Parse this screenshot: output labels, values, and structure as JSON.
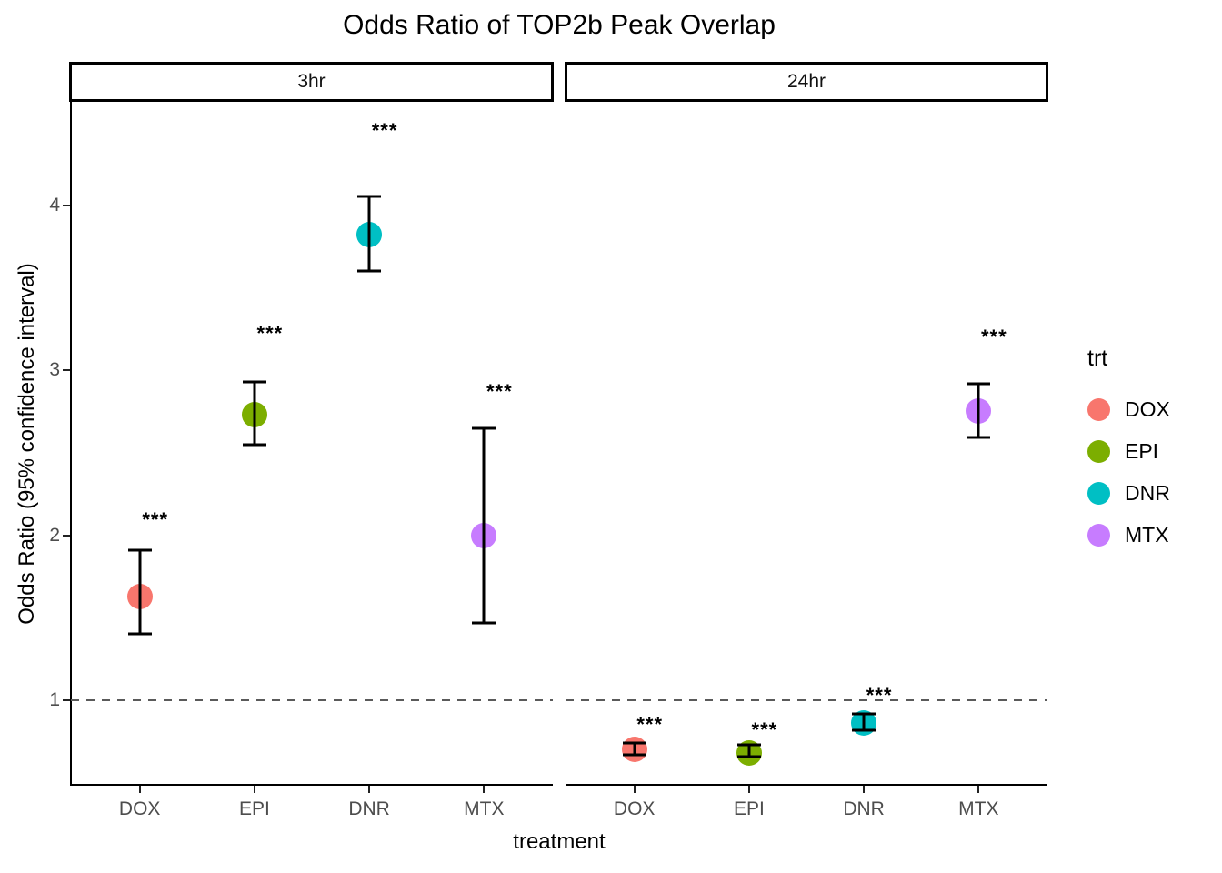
{
  "legend": {
    "title": "trt",
    "items": [
      {
        "label": "DOX",
        "color": "#F8766D"
      },
      {
        "label": "EPI",
        "color": "#7CAE00"
      },
      {
        "label": "DNR",
        "color": "#00BFC4"
      },
      {
        "label": "MTX",
        "color": "#C77CFF"
      }
    ]
  },
  "chart_data": {
    "type": "scatter",
    "subtype": "pointrange-with-error-bars-faceted",
    "title": "Odds Ratio of TOP2b Peak Overlap",
    "xlabel": "treatment",
    "ylabel": "Odds Ratio (95% confidence interval)",
    "ylim": [
      0.49,
      4.63
    ],
    "y_ticks": [
      1,
      2,
      3,
      4
    ],
    "reference_line_y": 1,
    "grid": "off",
    "legend_position": "right",
    "categories": [
      "DOX",
      "EPI",
      "DNR",
      "MTX"
    ],
    "series_colors": {
      "DOX": "#F8766D",
      "EPI": "#7CAE00",
      "DNR": "#00BFC4",
      "MTX": "#C77CFF"
    },
    "facets": [
      {
        "name": "3hr",
        "points": [
          {
            "treatment": "DOX",
            "odds_ratio": 1.63,
            "ci_low": 1.4,
            "ci_high": 1.91,
            "significance": "***",
            "sig_label_y": 2.09
          },
          {
            "treatment": "EPI",
            "odds_ratio": 2.73,
            "ci_low": 2.55,
            "ci_high": 2.93,
            "significance": "***",
            "sig_label_y": 3.22
          },
          {
            "treatment": "DNR",
            "odds_ratio": 3.82,
            "ci_low": 3.6,
            "ci_high": 4.05,
            "significance": "***",
            "sig_label_y": 4.45
          },
          {
            "treatment": "MTX",
            "odds_ratio": 2.0,
            "ci_low": 1.47,
            "ci_high": 2.65,
            "significance": "***",
            "sig_label_y": 2.87
          }
        ]
      },
      {
        "name": "24hr",
        "points": [
          {
            "treatment": "DOX",
            "odds_ratio": 0.7,
            "ci_low": 0.67,
            "ci_high": 0.74,
            "significance": "***",
            "sig_label_y": 0.85
          },
          {
            "treatment": "EPI",
            "odds_ratio": 0.68,
            "ci_low": 0.66,
            "ci_high": 0.73,
            "significance": "***",
            "sig_label_y": 0.82
          },
          {
            "treatment": "DNR",
            "odds_ratio": 0.86,
            "ci_low": 0.82,
            "ci_high": 0.92,
            "significance": "***",
            "sig_label_y": 1.03
          },
          {
            "treatment": "MTX",
            "odds_ratio": 2.75,
            "ci_low": 2.59,
            "ci_high": 2.92,
            "significance": "***",
            "sig_label_y": 3.2
          }
        ]
      }
    ]
  }
}
